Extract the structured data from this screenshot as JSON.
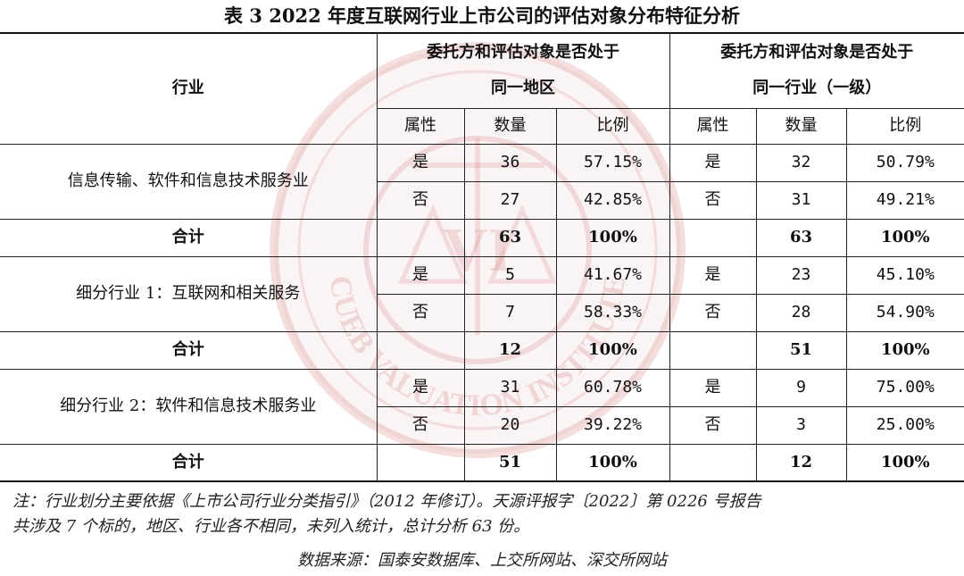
{
  "title": "表 3 2022 年度互联网行业上市公司的评估对象分布特征分析",
  "header": {
    "industry": "行业",
    "same_region_line1": "委托方和评估对象是否处于",
    "same_region_line2": "同一地区",
    "same_industry_line1": "委托方和评估对象是否处于",
    "same_industry_line2": "同一行业（一级）",
    "attr": "属性",
    "count": "数量",
    "ratio": "比例"
  },
  "groups": [
    {
      "name": "信息传输、软件和信息技术服务业",
      "rows": [
        {
          "r_attr": "是",
          "r_count": "36",
          "r_ratio": "57.15%",
          "i_attr": "是",
          "i_count": "32",
          "i_ratio": "50.79%"
        },
        {
          "r_attr": "否",
          "r_count": "27",
          "r_ratio": "42.85%",
          "i_attr": "否",
          "i_count": "31",
          "i_ratio": "49.21%"
        }
      ],
      "total": {
        "label": "合计",
        "r_count": "63",
        "r_ratio": "100%",
        "i_count": "63",
        "i_ratio": "100%"
      }
    },
    {
      "name": "细分行业 1：互联网和相关服务",
      "rows": [
        {
          "r_attr": "是",
          "r_count": "5",
          "r_ratio": "41.67%",
          "i_attr": "是",
          "i_count": "23",
          "i_ratio": "45.10%"
        },
        {
          "r_attr": "否",
          "r_count": "7",
          "r_ratio": "58.33%",
          "i_attr": "否",
          "i_count": "28",
          "i_ratio": "54.90%"
        }
      ],
      "total": {
        "label": "合计",
        "r_count": "12",
        "r_ratio": "100%",
        "i_count": "51",
        "i_ratio": "100%"
      }
    },
    {
      "name": "细分行业 2：软件和信息技术服务业",
      "rows": [
        {
          "r_attr": "是",
          "r_count": "31",
          "r_ratio": "60.78%",
          "i_attr": "是",
          "i_count": "9",
          "i_ratio": "75.00%"
        },
        {
          "r_attr": "否",
          "r_count": "20",
          "r_ratio": "39.22%",
          "i_attr": "否",
          "i_count": "3",
          "i_ratio": "25.00%"
        }
      ],
      "total": {
        "label": "合计",
        "r_count": "51",
        "r_ratio": "100%",
        "i_count": "12",
        "i_ratio": "100%"
      }
    }
  ],
  "note_line1": "注：行业划分主要依据《上市公司行业分类指引》（2012 年修订）。天源评报字〔2022〕第 0226 号报告",
  "note_line2": "共涉及 7 个标的，地区、行业各不相同，未列入统计，总计分析 63 份。",
  "source": "数据来源：国泰安数据库、上交所网站、深交所网站",
  "watermark": {
    "seal_text": "CUEB VALUATION INSTITUTE",
    "center_text": "VI",
    "color": "#c24a4a"
  }
}
